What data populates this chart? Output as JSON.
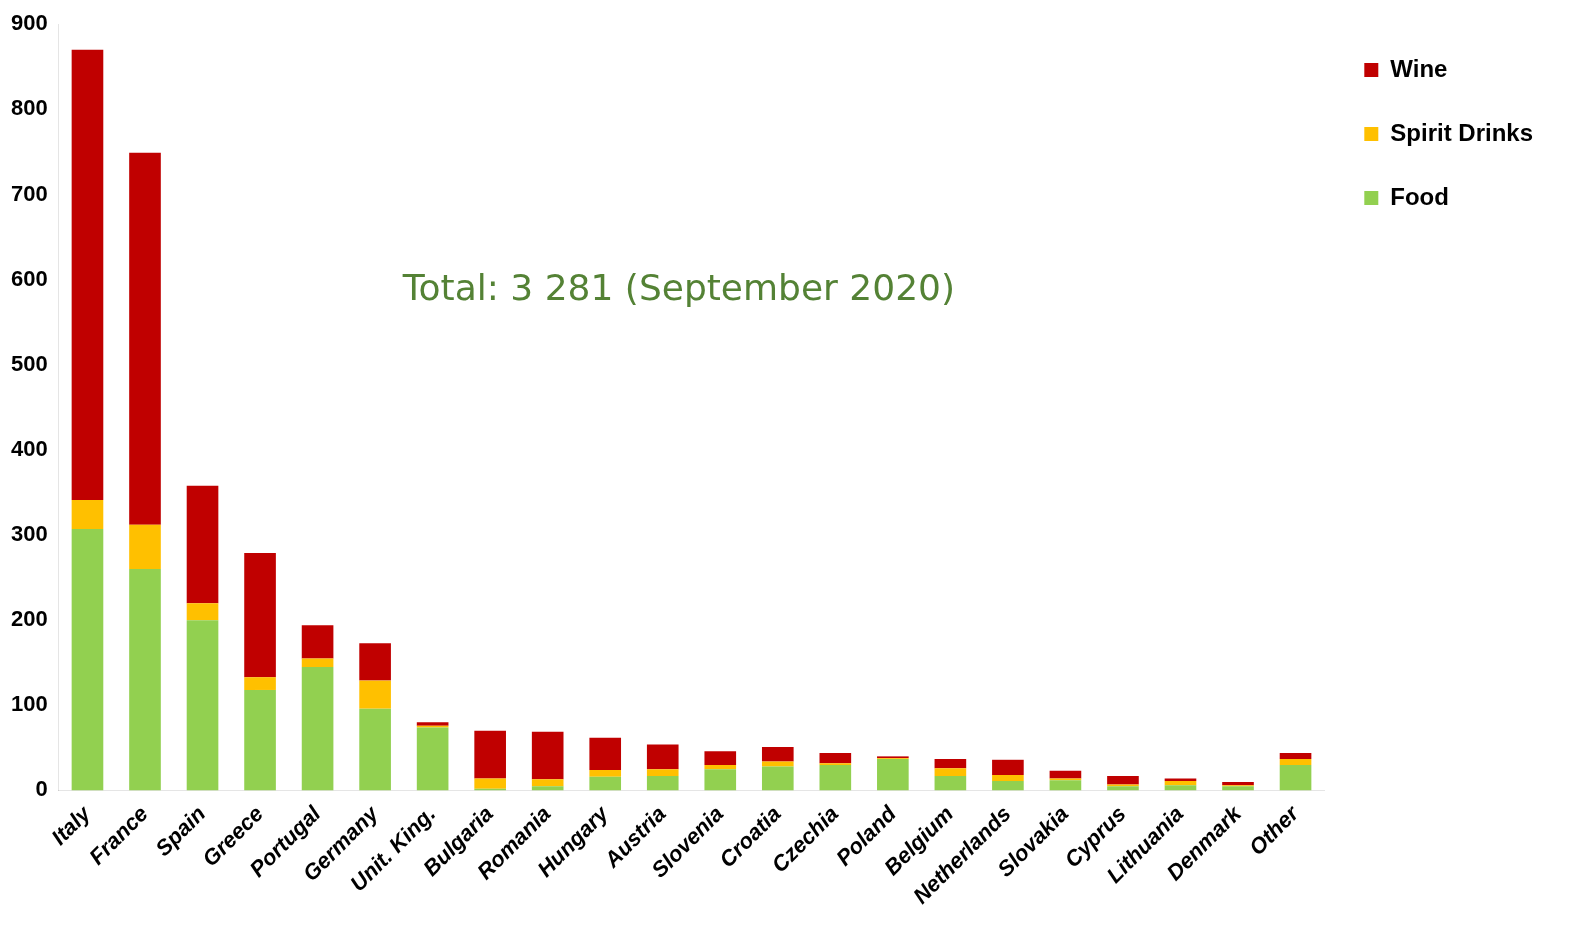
{
  "chart_data": {
    "type": "bar",
    "stacked": true,
    "categories": [
      "Italy",
      "France",
      "Spain",
      "Greece",
      "Portugal",
      "Germany",
      "Unit. King.",
      "Bulgaria",
      "Romania",
      "Hungary",
      "Austria",
      "Slovenia",
      "Croatia",
      "Czechia",
      "Poland",
      "Belgium",
      "Netherlands",
      "Slovakia",
      "Cyprus",
      "Lithuania",
      "Denmark",
      "Other"
    ],
    "series": [
      {
        "name": "Food",
        "color": "#92d050",
        "values": [
          307,
          260,
          200,
          118,
          145,
          96,
          74,
          2,
          5,
          16,
          17,
          25,
          28,
          30,
          37,
          17,
          11,
          12,
          5,
          6,
          5,
          30
        ]
      },
      {
        "name": "Spirit Drinks",
        "color": "#ffc000",
        "values": [
          34,
          52,
          20,
          15,
          10,
          33,
          2,
          12,
          8,
          8,
          8,
          5,
          6,
          2,
          1,
          9,
          7,
          2,
          2,
          5,
          1,
          7
        ]
      },
      {
        "name": "Wine",
        "color": "#c00000",
        "values": [
          529,
          437,
          138,
          146,
          39,
          44,
          4,
          56,
          56,
          38,
          29,
          16,
          17,
          12,
          2,
          11,
          18,
          9,
          10,
          3,
          4,
          7
        ]
      }
    ],
    "ylim": [
      0,
      900
    ],
    "yticks": [
      0,
      100,
      200,
      300,
      400,
      500,
      600,
      700,
      800,
      900
    ],
    "grid": false,
    "legend": "top right",
    "annotations": [
      "Total: 3 281 (September 2020)"
    ]
  }
}
